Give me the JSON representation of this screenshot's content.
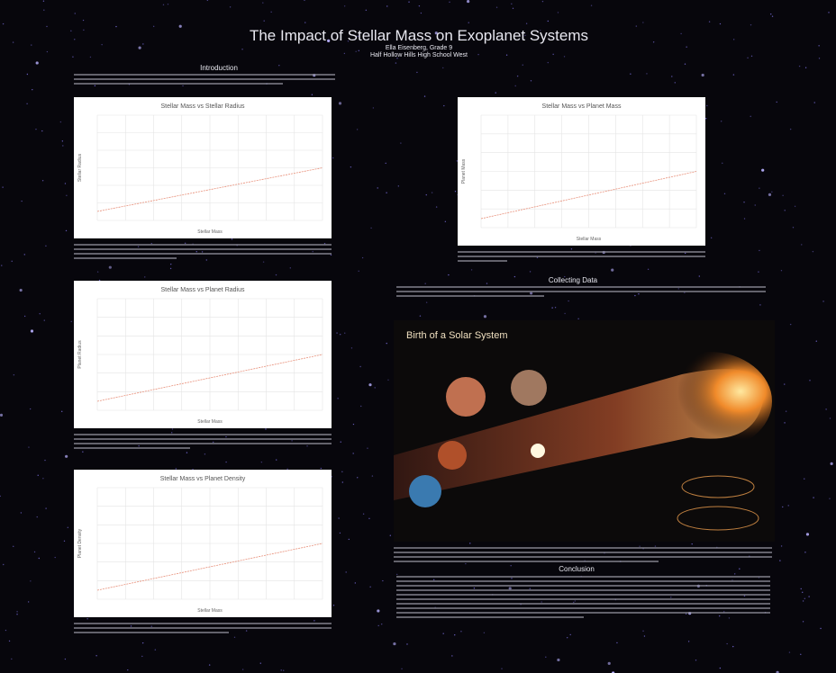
{
  "header": {
    "title": "The Impact of Stellar Mass on Exoplanet Systems",
    "author": "Ella Eisenberg, Grade 9",
    "school": "Half Hollow Hills High School West"
  },
  "sections": {
    "introduction": "Introduction",
    "collecting_data": "Collecting Data",
    "conclusion": "Conclusion"
  },
  "charts": [
    {
      "title": "Stellar Mass vs Stellar Radius",
      "x_label": "Stellar Mass",
      "y_label": "Stellar Radius"
    },
    {
      "title": "Stellar Mass vs Planet Radius",
      "x_label": "Stellar Mass",
      "y_label": "Planet Radius"
    },
    {
      "title": "Stellar Mass vs Planet Density",
      "x_label": "Stellar Mass",
      "y_label": "Planet Density"
    },
    {
      "title": "Stellar Mass vs Planet Mass",
      "x_label": "Stellar Mass",
      "y_label": "Planet Mass"
    }
  ],
  "infographic": {
    "title": "Birth of a Solar System"
  }
}
